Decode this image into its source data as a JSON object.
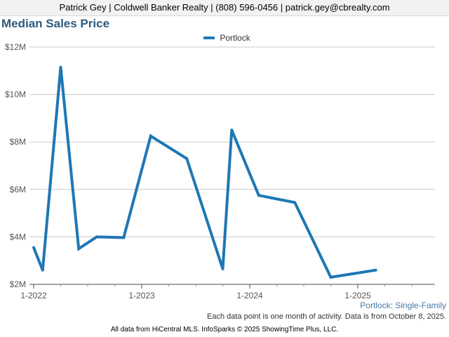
{
  "header": {
    "contact": "Patrick Gey | Coldwell Banker Realty | (808) 596-0456 | patrick.gey@cbrealty.com"
  },
  "chart_data": {
    "type": "line",
    "title": "Median Sales Price",
    "legend_position": "top-center",
    "grid": true,
    "ylim": [
      2000000,
      12000000
    ],
    "yticks": [
      {
        "value": 2000000,
        "label": "$2M"
      },
      {
        "value": 4000000,
        "label": "$4M"
      },
      {
        "value": 6000000,
        "label": "$6M"
      },
      {
        "value": 8000000,
        "label": "$8M"
      },
      {
        "value": 10000000,
        "label": "$10M"
      },
      {
        "value": 12000000,
        "label": "$12M"
      }
    ],
    "xlim": [
      "2022-01",
      "2025-09"
    ],
    "xticks": [
      {
        "value": "2022-01",
        "label": "1-2022"
      },
      {
        "value": "2023-01",
        "label": "1-2023"
      },
      {
        "value": "2024-01",
        "label": "1-2024"
      },
      {
        "value": "2025-01",
        "label": "1-2025"
      }
    ],
    "series": [
      {
        "name": "Portlock",
        "color": "#1f77b4",
        "points": [
          {
            "x": "2022-01",
            "y": 3550000
          },
          {
            "x": "2022-02",
            "y": 2600000
          },
          {
            "x": "2022-04",
            "y": 11150000
          },
          {
            "x": "2022-06",
            "y": 3500000
          },
          {
            "x": "2022-08",
            "y": 4000000
          },
          {
            "x": "2022-11",
            "y": 3970000
          },
          {
            "x": "2023-02",
            "y": 8250000
          },
          {
            "x": "2023-06",
            "y": 7300000
          },
          {
            "x": "2023-10",
            "y": 2650000
          },
          {
            "x": "2023-11",
            "y": 8500000
          },
          {
            "x": "2024-02",
            "y": 5750000
          },
          {
            "x": "2024-06",
            "y": 5450000
          },
          {
            "x": "2024-10",
            "y": 2300000
          },
          {
            "x": "2025-03",
            "y": 2600000
          }
        ]
      }
    ]
  },
  "series_label": "Portlock: Single-Family",
  "footnote": "Each data point is one month of activity. Data is from October 8, 2025.",
  "copyright": "All data from HiCentral MLS. InfoSparks © 2025 ShowingTime Plus, LLC."
}
